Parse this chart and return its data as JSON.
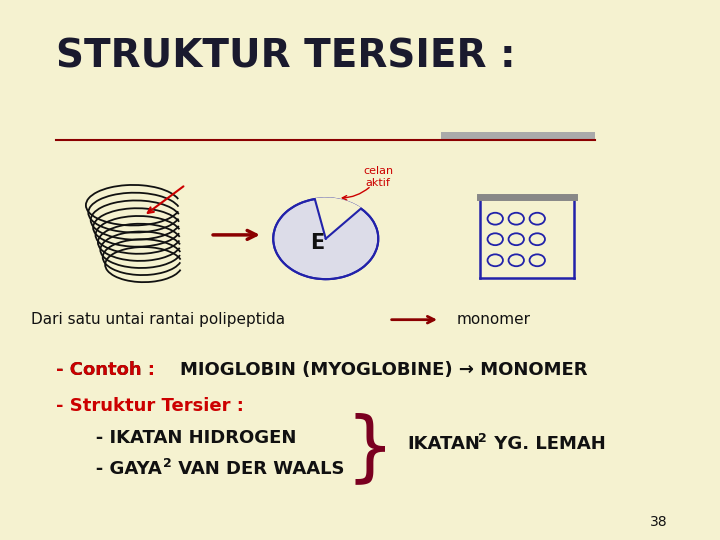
{
  "bg_color": "#f5f2d0",
  "title": "STRUKTUR TERSIER :",
  "title_color": "#1a1a2e",
  "title_fontsize": 28,
  "line_color": "#8b0000",
  "arrow_color": "#8b0000",
  "label_dari": "Dari satu untai rantai polipeptida",
  "label_monomer": "monomer",
  "label_color": "#111111",
  "label_fontsize": 11,
  "contoh_color": "#cc0000",
  "black_color": "#111111",
  "dark_red": "#7a0020",
  "page_num": "38",
  "enzyme_label": "E",
  "blue_color": "#2222aa",
  "celan_aktif_color": "#cc0000"
}
